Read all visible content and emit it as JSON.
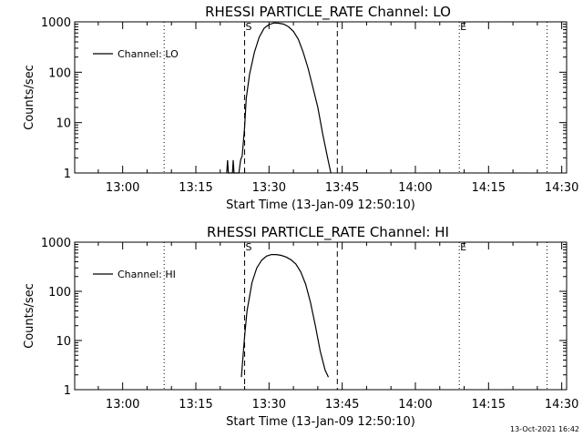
{
  "footer": {
    "timestamp": "13-Oct-2021 16:42"
  },
  "chart_data": [
    {
      "type": "line",
      "title": "RHESSI PARTICLE_RATE Channel: LO",
      "xlabel": "Start Time (13-Jan-09 12:50:10)",
      "ylabel": "Counts/sec",
      "yscale": "log",
      "ylim": [
        1,
        1000
      ],
      "xlim": [
        "12:50:10",
        "14:31:00"
      ],
      "x_ticks": [
        "13:00",
        "13:15",
        "13:30",
        "13:45",
        "14:00",
        "14:15",
        "14:30"
      ],
      "y_ticks": [
        "1",
        "10",
        "100",
        "1000"
      ],
      "legend": {
        "position": "top-left",
        "entries": [
          "Channel: LO"
        ]
      },
      "dotted_lines_x": [
        "13:08:30",
        "14:09:00",
        "14:27:00"
      ],
      "dashed_lines": [
        {
          "x": "13:25:00",
          "label": "S"
        },
        {
          "x": "13:44:00",
          "label": ""
        }
      ],
      "dotted_markers": [
        {
          "x": "14:09:00",
          "label": "E"
        }
      ],
      "series": [
        {
          "name": "Channel: LO",
          "points": [
            [
              "13:21:20",
              1
            ],
            [
              "13:21:30",
              1.8
            ],
            [
              "13:21:40",
              1
            ],
            [
              "13:22:30",
              1
            ],
            [
              "13:22:40",
              1.8
            ],
            [
              "13:22:50",
              1
            ],
            [
              "13:23:50",
              1
            ],
            [
              "13:24:10",
              1.8
            ],
            [
              "13:24:30",
              2.2
            ],
            [
              "13:25:00",
              8
            ],
            [
              "13:25:20",
              30
            ],
            [
              "13:26:00",
              90
            ],
            [
              "13:27:00",
              250
            ],
            [
              "13:28:00",
              500
            ],
            [
              "13:29:00",
              750
            ],
            [
              "13:30:00",
              880
            ],
            [
              "13:31:00",
              950
            ],
            [
              "13:32:00",
              940
            ],
            [
              "13:33:00",
              900
            ],
            [
              "13:34:00",
              800
            ],
            [
              "13:35:00",
              650
            ],
            [
              "13:36:00",
              450
            ],
            [
              "13:37:00",
              250
            ],
            [
              "13:38:00",
              120
            ],
            [
              "13:39:00",
              50
            ],
            [
              "13:40:00",
              20
            ],
            [
              "13:41:00",
              6
            ],
            [
              "13:42:00",
              2
            ],
            [
              "13:42:40",
              1
            ]
          ]
        }
      ]
    },
    {
      "type": "line",
      "title": "RHESSI PARTICLE_RATE Channel: HI",
      "xlabel": "Start Time (13-Jan-09 12:50:10)",
      "ylabel": "Counts/sec",
      "yscale": "log",
      "ylim": [
        1,
        1000
      ],
      "xlim": [
        "12:50:10",
        "14:31:00"
      ],
      "x_ticks": [
        "13:00",
        "13:15",
        "13:30",
        "13:45",
        "14:00",
        "14:15",
        "14:30"
      ],
      "y_ticks": [
        "1",
        "10",
        "100",
        "1000"
      ],
      "legend": {
        "position": "top-left",
        "entries": [
          "Channel: HI"
        ]
      },
      "dotted_lines_x": [
        "13:08:30",
        "14:09:00",
        "14:27:00"
      ],
      "dashed_lines": [
        {
          "x": "13:25:00",
          "label": "S"
        },
        {
          "x": "13:44:00",
          "label": ""
        }
      ],
      "dotted_markers": [
        {
          "x": "14:09:00",
          "label": "E"
        }
      ],
      "series": [
        {
          "name": "Channel: HI",
          "points": [
            [
              "13:24:20",
              1.8
            ],
            [
              "13:25:00",
              12
            ],
            [
              "13:25:30",
              40
            ],
            [
              "13:26:30",
              150
            ],
            [
              "13:27:30",
              300
            ],
            [
              "13:28:30",
              430
            ],
            [
              "13:29:30",
              520
            ],
            [
              "13:30:30",
              560
            ],
            [
              "13:31:30",
              560
            ],
            [
              "13:32:30",
              540
            ],
            [
              "13:33:30",
              500
            ],
            [
              "13:34:30",
              440
            ],
            [
              "13:35:30",
              360
            ],
            [
              "13:36:30",
              250
            ],
            [
              "13:37:30",
              140
            ],
            [
              "13:38:30",
              60
            ],
            [
              "13:39:30",
              20
            ],
            [
              "13:40:30",
              6
            ],
            [
              "13:41:30",
              2.5
            ],
            [
              "13:42:10",
              1.8
            ]
          ]
        }
      ]
    }
  ]
}
